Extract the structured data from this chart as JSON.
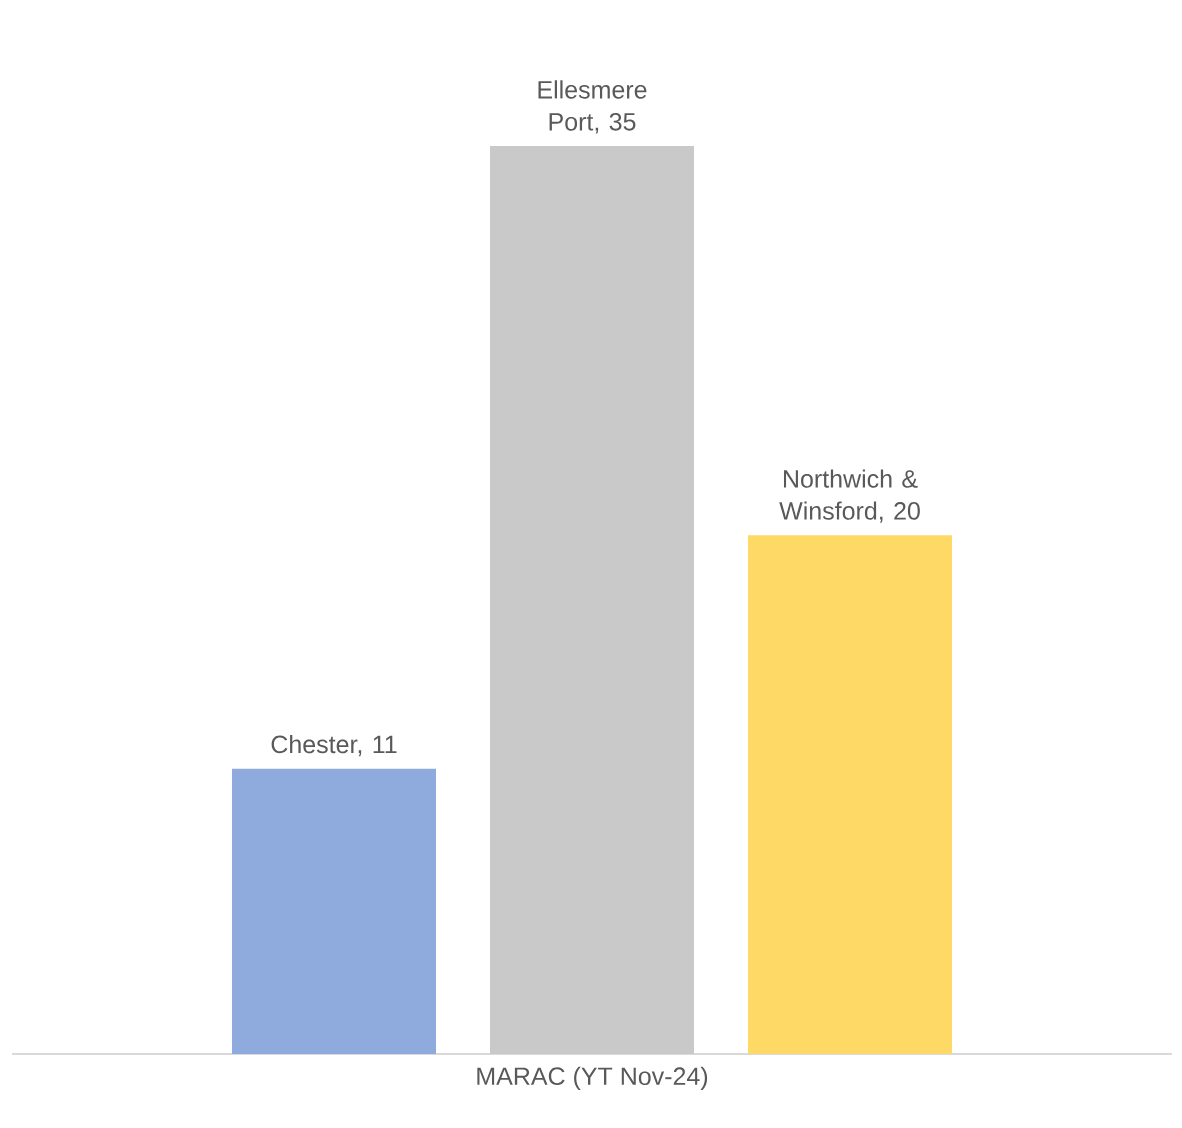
{
  "chart_data": {
    "type": "bar",
    "xlabel": "MARAC (YT Nov-24)",
    "categories": [
      null,
      null,
      null
    ],
    "values": [
      11,
      35,
      20
    ],
    "colors": [
      "#8faadc",
      "#c9c9c9",
      "#ffd966"
    ],
    "value_labels": [
      "Chester, 11",
      "Ellesmere Port, 35",
      "Northwich & Winsford, 20"
    ]
  }
}
